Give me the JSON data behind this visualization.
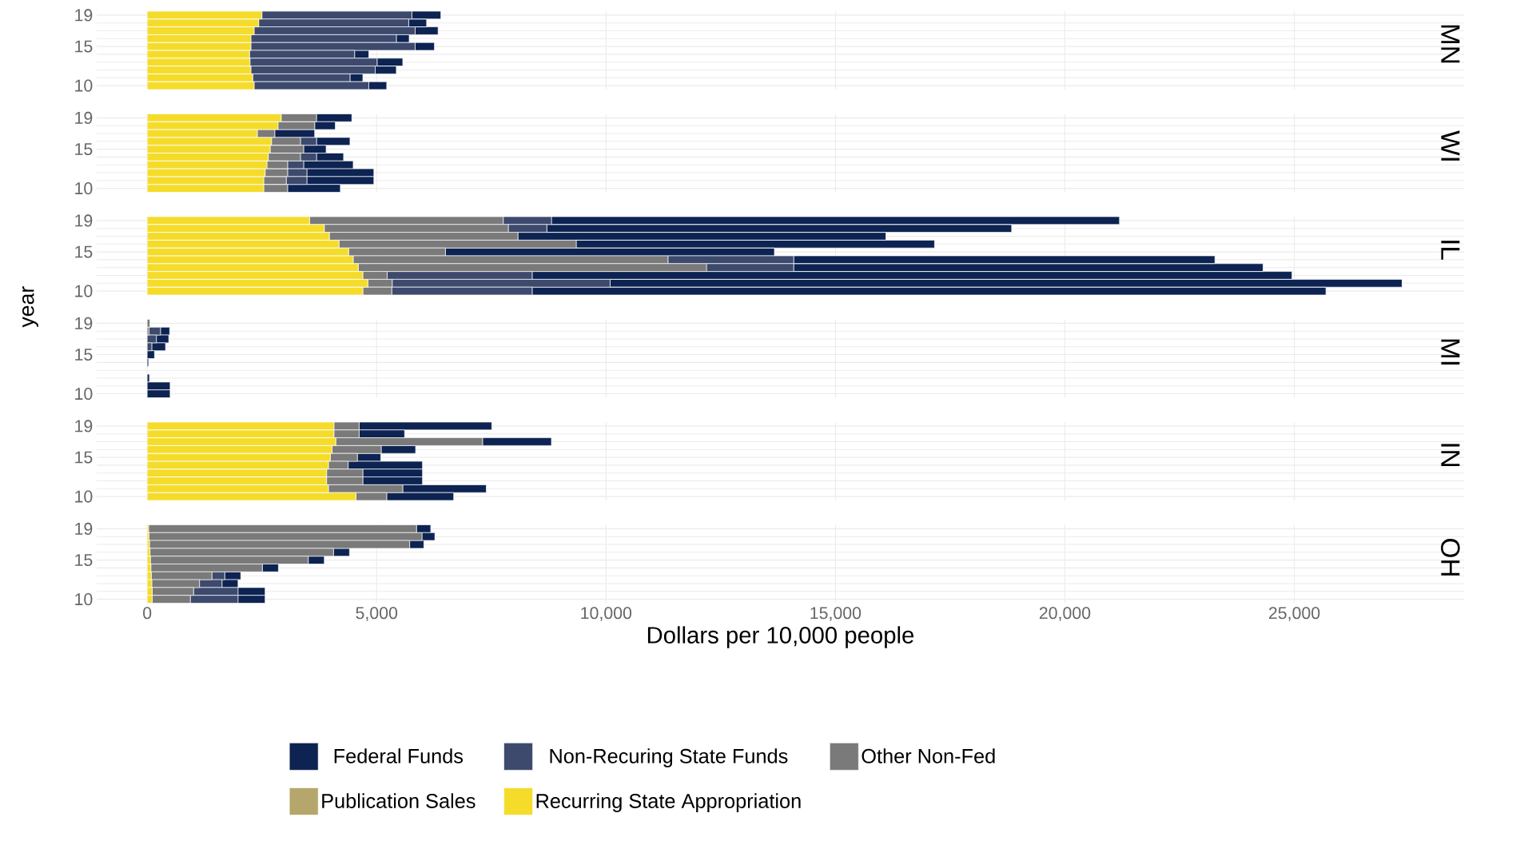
{
  "chart_data": [
    {
      "type": "bar",
      "title": "MN",
      "orientation": "horizontal",
      "stacked": true,
      "grid": true,
      "tick_labels": "y",
      "xlim": [
        -1100,
        28700
      ],
      "xticks": [
        0,
        5000,
        10000,
        15000,
        20000,
        25000
      ],
      "categories": [
        "19",
        null,
        null,
        null,
        "15",
        null,
        null,
        null,
        null,
        "10"
      ],
      "series": [
        {
          "color": "#f5dc2a",
          "values": [
            2500,
            2430,
            2330,
            2260,
            2260,
            2230,
            2240,
            2260,
            2300,
            2330
          ]
        },
        {
          "color": "#b5a66b",
          "values": [
            0,
            0,
            0,
            0,
            0,
            0,
            0,
            0,
            0,
            0
          ]
        },
        {
          "color": "#7a7a7a",
          "values": [
            0,
            0,
            0,
            0,
            0,
            0,
            0,
            0,
            0,
            0
          ]
        },
        {
          "color": "#3d4a6e",
          "values": [
            3270,
            3270,
            3510,
            3170,
            3580,
            2290,
            2770,
            2710,
            2120,
            2500
          ]
        },
        {
          "color": "#0d2352",
          "values": [
            630,
            390,
            500,
            280,
            420,
            310,
            560,
            460,
            280,
            390
          ]
        }
      ]
    },
    {
      "type": "bar",
      "title": "WI",
      "orientation": "horizontal",
      "stacked": true,
      "grid": true,
      "tick_labels": "y",
      "xlim": [
        -1100,
        28700
      ],
      "xticks": [
        0,
        5000,
        10000,
        15000,
        20000,
        25000
      ],
      "categories": [
        "19",
        null,
        null,
        null,
        "15",
        null,
        null,
        null,
        null,
        "10"
      ],
      "series": [
        {
          "color": "#f5dc2a",
          "values": [
            2920,
            2850,
            2400,
            2710,
            2680,
            2640,
            2610,
            2570,
            2540,
            2540
          ]
        },
        {
          "color": "#b5a66b",
          "values": [
            0,
            0,
            0,
            0,
            0,
            0,
            0,
            0,
            0,
            0
          ]
        },
        {
          "color": "#7a7a7a",
          "values": [
            770,
            800,
            380,
            630,
            730,
            700,
            450,
            490,
            490,
            520
          ]
        },
        {
          "color": "#3d4a6e",
          "values": [
            0,
            0,
            0,
            350,
            0,
            350,
            350,
            420,
            450,
            0
          ]
        },
        {
          "color": "#0d2352",
          "values": [
            770,
            450,
            870,
            730,
            490,
            590,
            1080,
            1460,
            1460,
            1150
          ]
        }
      ]
    },
    {
      "type": "bar",
      "title": "IL",
      "ylabel": "year",
      "orientation": "horizontal",
      "stacked": true,
      "grid": true,
      "tick_labels": "y",
      "xlim": [
        -1100,
        28700
      ],
      "xticks": [
        0,
        5000,
        10000,
        15000,
        20000,
        25000
      ],
      "categories": [
        "19",
        null,
        null,
        null,
        "15",
        null,
        null,
        null,
        null,
        "10"
      ],
      "series": [
        {
          "color": "#f5dc2a",
          "values": [
            3540,
            3860,
            3970,
            4180,
            4390,
            4490,
            4600,
            4700,
            4810,
            4700
          ]
        },
        {
          "color": "#b5a66b",
          "values": [
            0,
            0,
            0,
            0,
            0,
            0,
            0,
            0,
            0,
            0
          ]
        },
        {
          "color": "#7a7a7a",
          "values": [
            4220,
            4010,
            4110,
            5170,
            2110,
            6860,
            7590,
            530,
            530,
            630
          ]
        },
        {
          "color": "#3d4a6e",
          "values": [
            1050,
            840,
            0,
            0,
            0,
            2740,
            1900,
            3160,
            4750,
            3060
          ]
        },
        {
          "color": "#0d2352",
          "values": [
            12380,
            10130,
            8020,
            7810,
            7170,
            9180,
            10230,
            16560,
            17260,
            17300
          ]
        }
      ]
    },
    {
      "type": "bar",
      "title": "MI",
      "orientation": "horizontal",
      "stacked": true,
      "grid": true,
      "tick_labels": "y",
      "xlim": [
        -1100,
        28700
      ],
      "xticks": [
        0,
        5000,
        10000,
        15000,
        20000,
        25000
      ],
      "categories": [
        "19",
        null,
        null,
        null,
        "15",
        null,
        null,
        null,
        null,
        "10"
      ],
      "series": [
        {
          "color": "#f5dc2a",
          "values": [
            null,
            null,
            0,
            0,
            0,
            0,
            0,
            0,
            0,
            0
          ]
        },
        {
          "color": "#b5a66b",
          "values": [
            0,
            0,
            0,
            0,
            0,
            0,
            0,
            0,
            0,
            0
          ]
        },
        {
          "color": "#7a7a7a",
          "values": [
            60,
            40,
            0,
            0,
            0,
            0,
            0,
            0,
            0,
            0
          ]
        },
        {
          "color": "#3d4a6e",
          "values": [
            0,
            250,
            200,
            100,
            0,
            0,
            0,
            0,
            0,
            0
          ]
        },
        {
          "color": "#0d2352",
          "values": [
            0,
            200,
            270,
            300,
            160,
            30,
            null,
            50,
            500,
            500
          ]
        }
      ]
    },
    {
      "type": "bar",
      "title": "IN",
      "orientation": "horizontal",
      "stacked": true,
      "grid": true,
      "tick_labels": "y",
      "xlim": [
        -1100,
        28700
      ],
      "xticks": [
        0,
        5000,
        10000,
        15000,
        20000,
        25000
      ],
      "categories": [
        "19",
        null,
        null,
        null,
        "15",
        null,
        null,
        null,
        null,
        "10"
      ],
      "series": [
        {
          "color": "#f5dc2a",
          "values": [
            4070,
            4070,
            4110,
            4030,
            3990,
            3950,
            3910,
            3910,
            3950,
            4550
          ]
        },
        {
          "color": "#b5a66b",
          "values": [
            0,
            0,
            0,
            0,
            0,
            0,
            0,
            0,
            0,
            0
          ]
        },
        {
          "color": "#7a7a7a",
          "values": [
            550,
            550,
            3200,
            1070,
            590,
            430,
            790,
            790,
            1620,
            670
          ]
        },
        {
          "color": "#3d4a6e",
          "values": [
            0,
            0,
            0,
            0,
            0,
            0,
            0,
            0,
            0,
            0
          ]
        },
        {
          "color": "#0d2352",
          "values": [
            2890,
            990,
            1500,
            750,
            510,
            1620,
            1300,
            1300,
            1820,
            1460
          ]
        }
      ]
    },
    {
      "type": "bar",
      "title": "OH",
      "xlabel": "Dollars per 10,000 people",
      "orientation": "horizontal",
      "stacked": true,
      "grid": true,
      "legend": "bottom",
      "xlim": [
        -1100,
        28700
      ],
      "xticks": [
        0,
        {
          "value": 5000,
          "label": "5,000"
        },
        {
          "value": 10000,
          "label": "10,000"
        },
        {
          "value": 15000,
          "label": "15,000"
        },
        {
          "value": 20000,
          "label": "20,000"
        },
        {
          "value": 25000,
          "label": "25,000"
        }
      ],
      "categories": [
        "19",
        null,
        null,
        null,
        "15",
        null,
        null,
        null,
        null,
        "10"
      ],
      "series": [
        {
          "name": "Recurring State Appropriation",
          "color": "#f5dc2a",
          "values": [
            30,
            40,
            50,
            60,
            70,
            80,
            90,
            100,
            110,
            110
          ]
        },
        {
          "name": "Publication Sales",
          "color": "#b5a66b",
          "values": [
            0,
            0,
            0,
            0,
            0,
            0,
            0,
            0,
            0,
            0
          ]
        },
        {
          "name": "Other Non-Fed",
          "color": "#7a7a7a",
          "values": [
            5840,
            5950,
            5670,
            4000,
            3440,
            2430,
            1320,
            1040,
            900,
            830
          ]
        },
        {
          "name": "Non-Recuring State Funds",
          "color": "#3d4a6e",
          "values": [
            0,
            0,
            0,
            0,
            0,
            0,
            280,
            490,
            970,
            1040
          ]
        },
        {
          "name": "Federal Funds",
          "color": "#0d2352",
          "values": [
            310,
            280,
            310,
            350,
            350,
            350,
            350,
            350,
            590,
            590
          ]
        }
      ]
    }
  ]
}
